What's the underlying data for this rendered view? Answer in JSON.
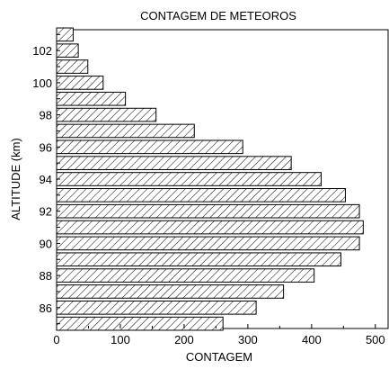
{
  "chart_data": {
    "type": "bar",
    "orientation": "horizontal",
    "title": "CONTAGEM DE METEOROS",
    "xlabel": "CONTAGEM",
    "ylabel": "ALTITUDE (km)",
    "xlim": [
      0,
      520
    ],
    "ylim": [
      84.7,
      103.3
    ],
    "xticks": [
      0,
      100,
      200,
      300,
      400,
      500
    ],
    "xtick_labels": [
      "0",
      "100",
      "200",
      "300",
      "400",
      "500"
    ],
    "yticks": [
      86,
      88,
      90,
      92,
      94,
      96,
      98,
      100,
      102
    ],
    "ytick_labels": [
      "86",
      "88",
      "90",
      "92",
      "94",
      "96",
      "98",
      "100",
      "102"
    ],
    "grid": false,
    "bar_fill": "diagonal-hatch",
    "colors": {
      "bar_edge": "#000000",
      "hatch": "#000000",
      "background": "#ffffff"
    },
    "categories": [
      85,
      86,
      87,
      88,
      89,
      90,
      91,
      92,
      93,
      94,
      95,
      96,
      97,
      98,
      99,
      100,
      101,
      102,
      103
    ],
    "values": [
      261,
      313,
      356,
      404,
      446,
      475,
      481,
      475,
      453,
      415,
      368,
      292,
      216,
      156,
      108,
      73,
      49,
      34,
      26
    ]
  }
}
